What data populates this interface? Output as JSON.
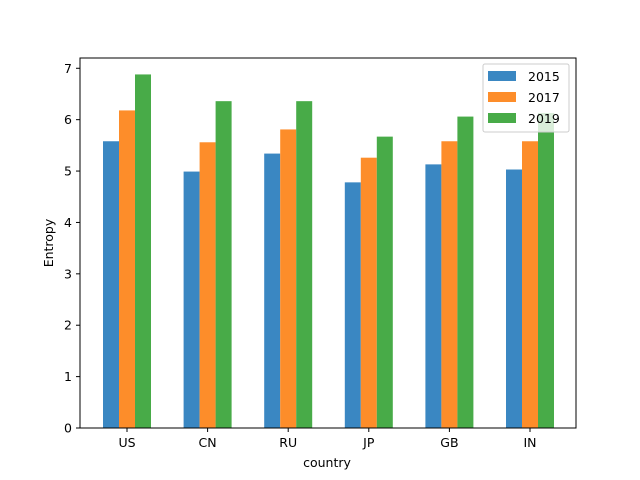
{
  "chart_data": {
    "type": "bar",
    "title": "",
    "xlabel": "country",
    "ylabel": "Entropy",
    "categories": [
      "US",
      "CN",
      "RU",
      "JP",
      "GB",
      "IN"
    ],
    "ylim": [
      0,
      7.2
    ],
    "yticks": [
      0,
      1,
      2,
      3,
      4,
      5,
      6,
      7
    ],
    "grid": false,
    "legend_position": "top-right",
    "series": [
      {
        "name": "2015",
        "color": "#3a87c2",
        "values": [
          5.58,
          4.99,
          5.34,
          4.78,
          5.13,
          5.03
        ]
      },
      {
        "name": "2017",
        "color": "#fd8d2a",
        "values": [
          6.18,
          5.56,
          5.81,
          5.26,
          5.58,
          5.58
        ]
      },
      {
        "name": "2019",
        "color": "#48ab48",
        "values": [
          6.88,
          6.36,
          6.36,
          5.67,
          6.06,
          6.13
        ]
      }
    ]
  }
}
